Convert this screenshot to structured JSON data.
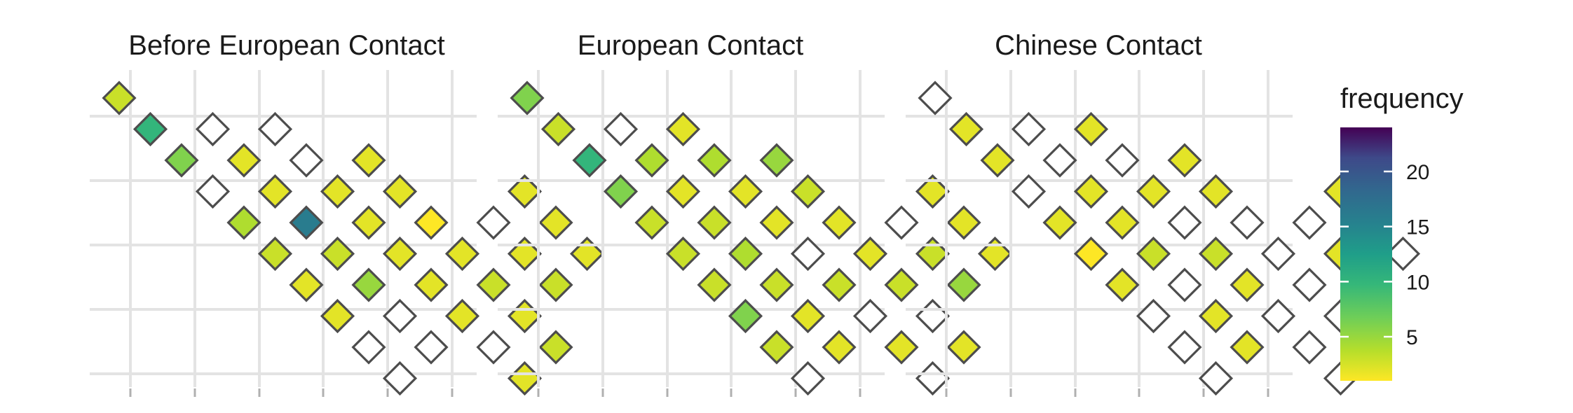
{
  "chart_data": {
    "type": "heatmap",
    "panels": [
      {
        "title": "Before European Contact",
        "cells": [
          {
            "row": 0,
            "col": 0,
            "value": 3
          },
          {
            "row": 1,
            "col": 0,
            "value": 10
          },
          {
            "row": 2,
            "col": 0,
            "value": 6
          },
          {
            "row": 2,
            "col": 1,
            "value": null
          },
          {
            "row": 3,
            "col": 0,
            "value": null
          },
          {
            "row": 3,
            "col": 1,
            "value": 2
          },
          {
            "row": 3,
            "col": 2,
            "value": null
          },
          {
            "row": 4,
            "col": 0,
            "value": 4
          },
          {
            "row": 4,
            "col": 1,
            "value": 2
          },
          {
            "row": 4,
            "col": 2,
            "value": null
          },
          {
            "row": 5,
            "col": 0,
            "value": 3
          },
          {
            "row": 5,
            "col": 1,
            "value": 16
          },
          {
            "row": 5,
            "col": 2,
            "value": 2
          },
          {
            "row": 5,
            "col": 3,
            "value": 2
          },
          {
            "row": 6,
            "col": 0,
            "value": 2
          },
          {
            "row": 6,
            "col": 1,
            "value": 3
          },
          {
            "row": 6,
            "col": 2,
            "value": 2
          },
          {
            "row": 6,
            "col": 3,
            "value": 2
          },
          {
            "row": 7,
            "col": 0,
            "value": 2
          },
          {
            "row": 7,
            "col": 1,
            "value": 5
          },
          {
            "row": 7,
            "col": 2,
            "value": 2
          },
          {
            "row": 7,
            "col": 3,
            "value": 1
          },
          {
            "row": 8,
            "col": 0,
            "value": null
          },
          {
            "row": 8,
            "col": 1,
            "value": null
          },
          {
            "row": 8,
            "col": 2,
            "value": 2
          },
          {
            "row": 8,
            "col": 3,
            "value": 2
          },
          {
            "row": 8,
            "col": 4,
            "value": null
          },
          {
            "row": 8,
            "col": 5,
            "value": 2
          },
          {
            "row": 9,
            "col": 0,
            "value": null
          },
          {
            "row": 9,
            "col": 1,
            "value": null
          },
          {
            "row": 9,
            "col": 2,
            "value": 2
          },
          {
            "row": 9,
            "col": 3,
            "value": 3
          },
          {
            "row": 9,
            "col": 4,
            "value": 2
          },
          {
            "row": 9,
            "col": 5,
            "value": 2
          },
          {
            "row": 10,
            "col": 2,
            "value": null
          },
          {
            "row": 10,
            "col": 3,
            "value": 2
          },
          {
            "row": 10,
            "col": 4,
            "value": 3
          },
          {
            "row": 10,
            "col": 5,
            "value": 2
          },
          {
            "row": 11,
            "col": 2,
            "value": 2
          },
          {
            "row": 11,
            "col": 3,
            "value": 3
          }
        ]
      },
      {
        "title": "European Contact",
        "cells": [
          {
            "row": 0,
            "col": 0,
            "value": 6
          },
          {
            "row": 1,
            "col": 0,
            "value": 3
          },
          {
            "row": 2,
            "col": 0,
            "value": 10
          },
          {
            "row": 2,
            "col": 1,
            "value": null
          },
          {
            "row": 3,
            "col": 0,
            "value": 6
          },
          {
            "row": 3,
            "col": 1,
            "value": 4
          },
          {
            "row": 3,
            "col": 2,
            "value": 2
          },
          {
            "row": 4,
            "col": 0,
            "value": 3
          },
          {
            "row": 4,
            "col": 1,
            "value": 2
          },
          {
            "row": 4,
            "col": 2,
            "value": 4
          },
          {
            "row": 5,
            "col": 0,
            "value": 3
          },
          {
            "row": 5,
            "col": 1,
            "value": 3
          },
          {
            "row": 5,
            "col": 2,
            "value": 2
          },
          {
            "row": 5,
            "col": 3,
            "value": 5
          },
          {
            "row": 6,
            "col": 0,
            "value": 3
          },
          {
            "row": 6,
            "col": 1,
            "value": 4
          },
          {
            "row": 6,
            "col": 2,
            "value": 2
          },
          {
            "row": 6,
            "col": 3,
            "value": 3
          },
          {
            "row": 7,
            "col": 0,
            "value": 6
          },
          {
            "row": 7,
            "col": 1,
            "value": 3
          },
          {
            "row": 7,
            "col": 2,
            "value": null
          },
          {
            "row": 7,
            "col": 3,
            "value": 2
          },
          {
            "row": 8,
            "col": 0,
            "value": 3
          },
          {
            "row": 8,
            "col": 1,
            "value": 2
          },
          {
            "row": 8,
            "col": 2,
            "value": 3
          },
          {
            "row": 8,
            "col": 3,
            "value": 2
          },
          {
            "row": 8,
            "col": 4,
            "value": null
          },
          {
            "row": 8,
            "col": 5,
            "value": 2
          },
          {
            "row": 9,
            "col": 0,
            "value": null
          },
          {
            "row": 9,
            "col": 1,
            "value": 2
          },
          {
            "row": 9,
            "col": 2,
            "value": null
          },
          {
            "row": 9,
            "col": 3,
            "value": 3
          },
          {
            "row": 9,
            "col": 4,
            "value": 3
          },
          {
            "row": 9,
            "col": 5,
            "value": 2
          },
          {
            "row": 10,
            "col": 2,
            "value": 2
          },
          {
            "row": 10,
            "col": 3,
            "value": null
          },
          {
            "row": 10,
            "col": 4,
            "value": 5
          },
          {
            "row": 10,
            "col": 5,
            "value": 2
          },
          {
            "row": 11,
            "col": 2,
            "value": null
          },
          {
            "row": 11,
            "col": 3,
            "value": 2
          }
        ]
      },
      {
        "title": "Chinese Contact",
        "cells": [
          {
            "row": 0,
            "col": 0,
            "value": null
          },
          {
            "row": 1,
            "col": 0,
            "value": 2
          },
          {
            "row": 2,
            "col": 0,
            "value": 2
          },
          {
            "row": 2,
            "col": 1,
            "value": null
          },
          {
            "row": 3,
            "col": 0,
            "value": null
          },
          {
            "row": 3,
            "col": 1,
            "value": null
          },
          {
            "row": 3,
            "col": 2,
            "value": 2
          },
          {
            "row": 4,
            "col": 0,
            "value": 2
          },
          {
            "row": 4,
            "col": 1,
            "value": 2
          },
          {
            "row": 4,
            "col": 2,
            "value": null
          },
          {
            "row": 5,
            "col": 0,
            "value": 1
          },
          {
            "row": 5,
            "col": 1,
            "value": 2
          },
          {
            "row": 5,
            "col": 2,
            "value": 2
          },
          {
            "row": 5,
            "col": 3,
            "value": 2
          },
          {
            "row": 6,
            "col": 0,
            "value": 2
          },
          {
            "row": 6,
            "col": 1,
            "value": 3
          },
          {
            "row": 6,
            "col": 2,
            "value": null
          },
          {
            "row": 6,
            "col": 3,
            "value": 2
          },
          {
            "row": 7,
            "col": 0,
            "value": null
          },
          {
            "row": 7,
            "col": 1,
            "value": null
          },
          {
            "row": 7,
            "col": 2,
            "value": 3
          },
          {
            "row": 7,
            "col": 3,
            "value": null
          },
          {
            "row": 8,
            "col": 0,
            "value": null
          },
          {
            "row": 8,
            "col": 1,
            "value": 2
          },
          {
            "row": 8,
            "col": 2,
            "value": 2
          },
          {
            "row": 8,
            "col": 3,
            "value": null
          },
          {
            "row": 8,
            "col": 4,
            "value": null
          },
          {
            "row": 8,
            "col": 5,
            "value": 2
          },
          {
            "row": 9,
            "col": 0,
            "value": null
          },
          {
            "row": 9,
            "col": 1,
            "value": 2
          },
          {
            "row": 9,
            "col": 2,
            "value": null
          },
          {
            "row": 9,
            "col": 3,
            "value": null
          },
          {
            "row": 9,
            "col": 4,
            "value": 2
          },
          {
            "row": 9,
            "col": 5,
            "value": null
          },
          {
            "row": 10,
            "col": 2,
            "value": null
          },
          {
            "row": 10,
            "col": 3,
            "value": null
          },
          {
            "row": 10,
            "col": 4,
            "value": null
          },
          {
            "row": 10,
            "col": 5,
            "value": null
          },
          {
            "row": 11,
            "col": 2,
            "value": null
          },
          {
            "row": 11,
            "col": 3,
            "value": null
          }
        ]
      }
    ],
    "legend": {
      "title": "frequency",
      "ticks": [
        5,
        10,
        15,
        20
      ],
      "range": [
        1,
        24
      ],
      "palette": "viridis-reversed",
      "colors": [
        "#fde725",
        "#5ec962",
        "#21918c",
        "#3b528b",
        "#440154"
      ],
      "placement": "right"
    },
    "grid": true,
    "missing_fill": "#ffffff",
    "tile_border": "#4d4d4d"
  }
}
